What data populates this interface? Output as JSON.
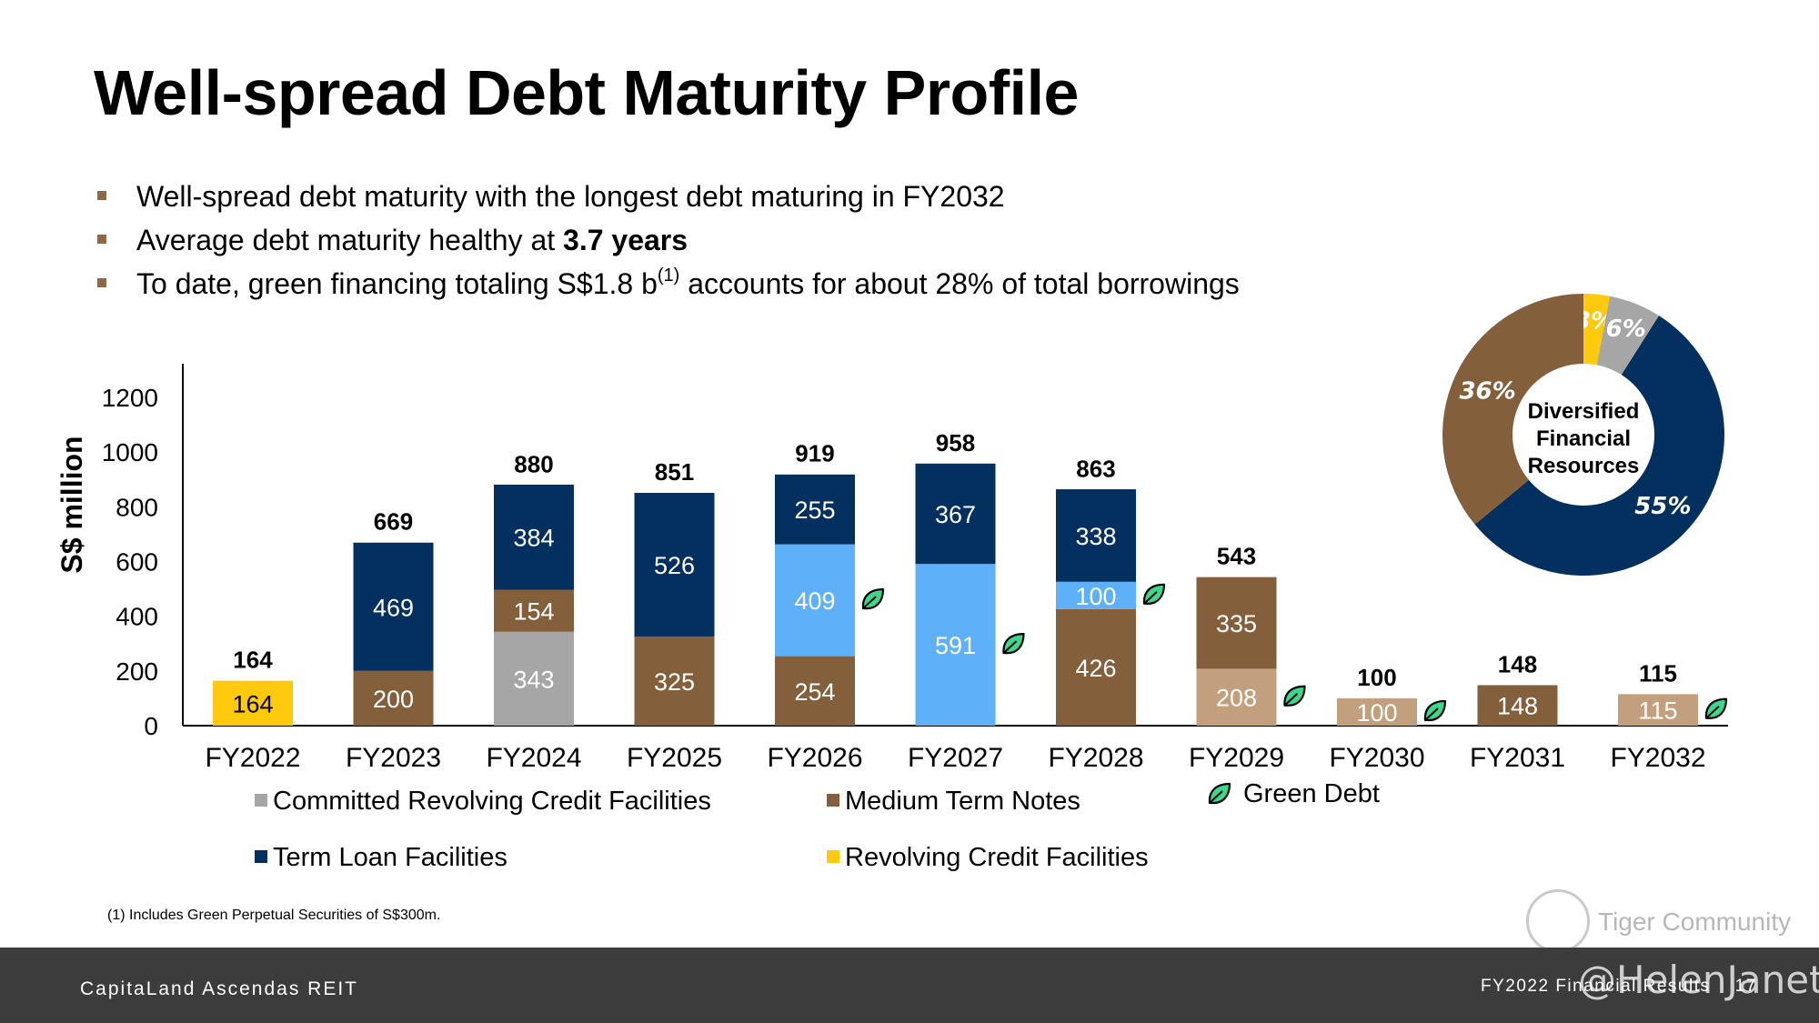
{
  "title": "Well-spread Debt Maturity Profile",
  "bullets": {
    "b1": "Well-spread debt maturity with the longest debt maturing in FY2032",
    "b2_pre": "Average debt maturity healthy at ",
    "b2_bold": "3.7 years",
    "b3_pre": "To date, green financing totaling S$1.8 b",
    "b3_sup": "(1)",
    "b3_post": " accounts for about 28% of total borrowings"
  },
  "colors": {
    "committed_rcf": "#a6a6a6",
    "mtn": "#845f3b",
    "term_loan": "#03305f",
    "rcf": "#ffc90d",
    "green_term_loan": "#5eb0f8",
    "green_mtn": "#c3a07d",
    "leaf": "#3dd68c"
  },
  "chart_data": [
    {
      "type": "bar",
      "stacked": true,
      "ylabel": "S$ million",
      "ylim": [
        0,
        1200
      ],
      "yticks": [
        0,
        200,
        400,
        600,
        800,
        1000,
        1200
      ],
      "categories": [
        "FY2022",
        "FY2023",
        "FY2024",
        "FY2025",
        "FY2026",
        "FY2027",
        "FY2028",
        "FY2029",
        "FY2030",
        "FY2031",
        "FY2032"
      ],
      "totals": [
        164,
        669,
        880,
        851,
        919,
        958,
        863,
        543,
        100,
        148,
        115
      ],
      "green": [
        false,
        false,
        false,
        false,
        true,
        true,
        true,
        true,
        true,
        false,
        true
      ],
      "segments": [
        [
          {
            "value": 164,
            "type": "rcf"
          }
        ],
        [
          {
            "value": 200,
            "type": "mtn"
          },
          {
            "value": 469,
            "type": "term_loan"
          }
        ],
        [
          {
            "value": 343,
            "type": "committed_rcf"
          },
          {
            "value": 154,
            "type": "mtn"
          },
          {
            "value": 384,
            "type": "term_loan"
          }
        ],
        [
          {
            "value": 325,
            "type": "mtn"
          },
          {
            "value": 526,
            "type": "term_loan"
          }
        ],
        [
          {
            "value": 254,
            "type": "mtn"
          },
          {
            "value": 409,
            "type": "green_term_loan"
          },
          {
            "value": 255,
            "type": "term_loan"
          }
        ],
        [
          {
            "value": 591,
            "type": "green_term_loan"
          },
          {
            "value": 367,
            "type": "term_loan"
          }
        ],
        [
          {
            "value": 426,
            "type": "mtn"
          },
          {
            "value": 100,
            "type": "green_term_loan"
          },
          {
            "value": 338,
            "type": "term_loan"
          }
        ],
        [
          {
            "value": 208,
            "type": "green_mtn"
          },
          {
            "value": 335,
            "type": "mtn"
          }
        ],
        [
          {
            "value": 100,
            "type": "green_mtn"
          }
        ],
        [
          {
            "value": 148,
            "type": "mtn"
          }
        ],
        [
          {
            "value": 115,
            "type": "green_mtn"
          }
        ]
      ],
      "legend": [
        {
          "label": "Committed Revolving Credit Facilities",
          "type": "committed_rcf"
        },
        {
          "label": "Medium Term Notes",
          "type": "mtn"
        },
        {
          "label": "Green Debt",
          "type": "leaf"
        },
        {
          "label": "Term Loan Facilities",
          "type": "term_loan"
        },
        {
          "label": "Revolving Credit Facilities",
          "type": "rcf"
        }
      ]
    },
    {
      "type": "pie",
      "donut": true,
      "center_label": [
        "Diversified",
        "Financial",
        "Resources"
      ],
      "slices": [
        {
          "value": 3,
          "label": "3%",
          "type": "rcf"
        },
        {
          "value": 6,
          "label": "6%",
          "type": "committed_rcf"
        },
        {
          "value": 55,
          "label": "55%",
          "type": "term_loan"
        },
        {
          "value": 36,
          "label": "36%",
          "type": "mtn"
        }
      ]
    }
  ],
  "footnote": "(1)  Includes Green Perpetual Securities of S$300m.",
  "footer": {
    "left": "CapitaLand Ascendas REIT",
    "right": "FY2022 Financial Results",
    "page": "17"
  },
  "watermark": {
    "text": "Tiger Community",
    "handle": "@HelenJanet"
  }
}
